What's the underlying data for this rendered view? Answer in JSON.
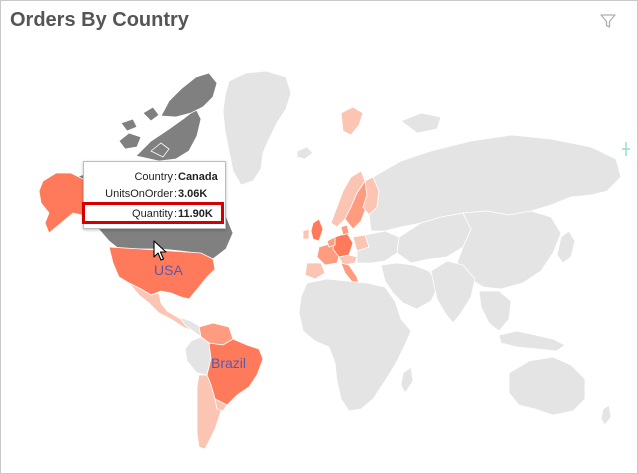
{
  "widget": {
    "title": "Orders By Country",
    "filter_icon": "filter-icon"
  },
  "map": {
    "labels": {
      "usa": "USA",
      "brazil": "Brazil"
    },
    "colors": {
      "no_data": "#e4e4e4",
      "hovered": "#808080",
      "high": "#ff7a5a",
      "medium": "#ff9c80",
      "low": "#fcc4b2",
      "label": "#5a5aa8",
      "highlight": "#d40000"
    }
  },
  "tooltip": {
    "rows": [
      {
        "key": "Country",
        "value": "Canada"
      },
      {
        "key": "UnitsOnOrder",
        "value": "3.06K"
      },
      {
        "key": "Quantity",
        "value": "11.90K"
      }
    ]
  }
}
